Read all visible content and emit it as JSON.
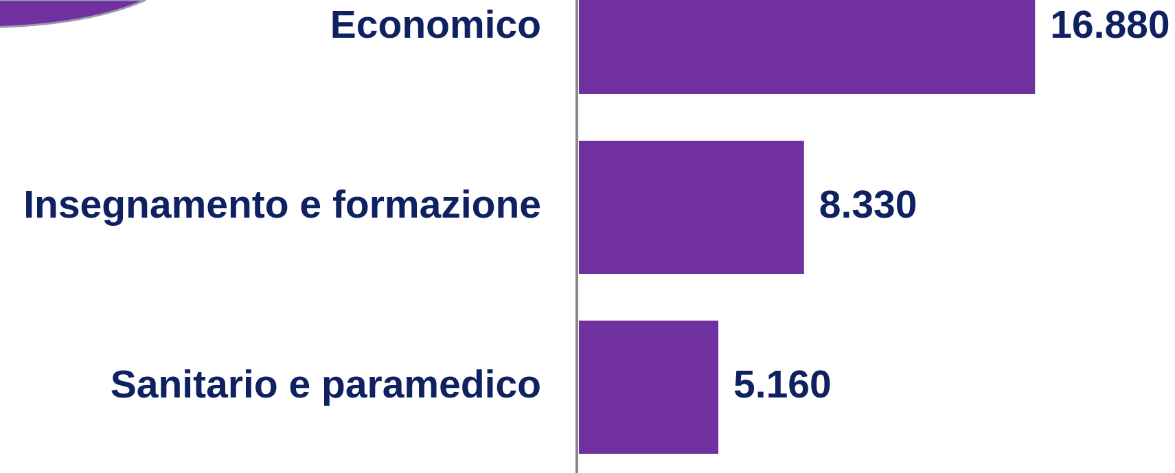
{
  "chart_data": {
    "type": "bar",
    "orientation": "horizontal",
    "color": "#7030a0",
    "categories": [
      "Economico",
      "Insegnamento e formazione",
      "Sanitario e paramedico"
    ],
    "values": [
      16880,
      8330,
      5160
    ],
    "value_labels": [
      "16.880",
      "8.330",
      "5.160"
    ]
  }
}
